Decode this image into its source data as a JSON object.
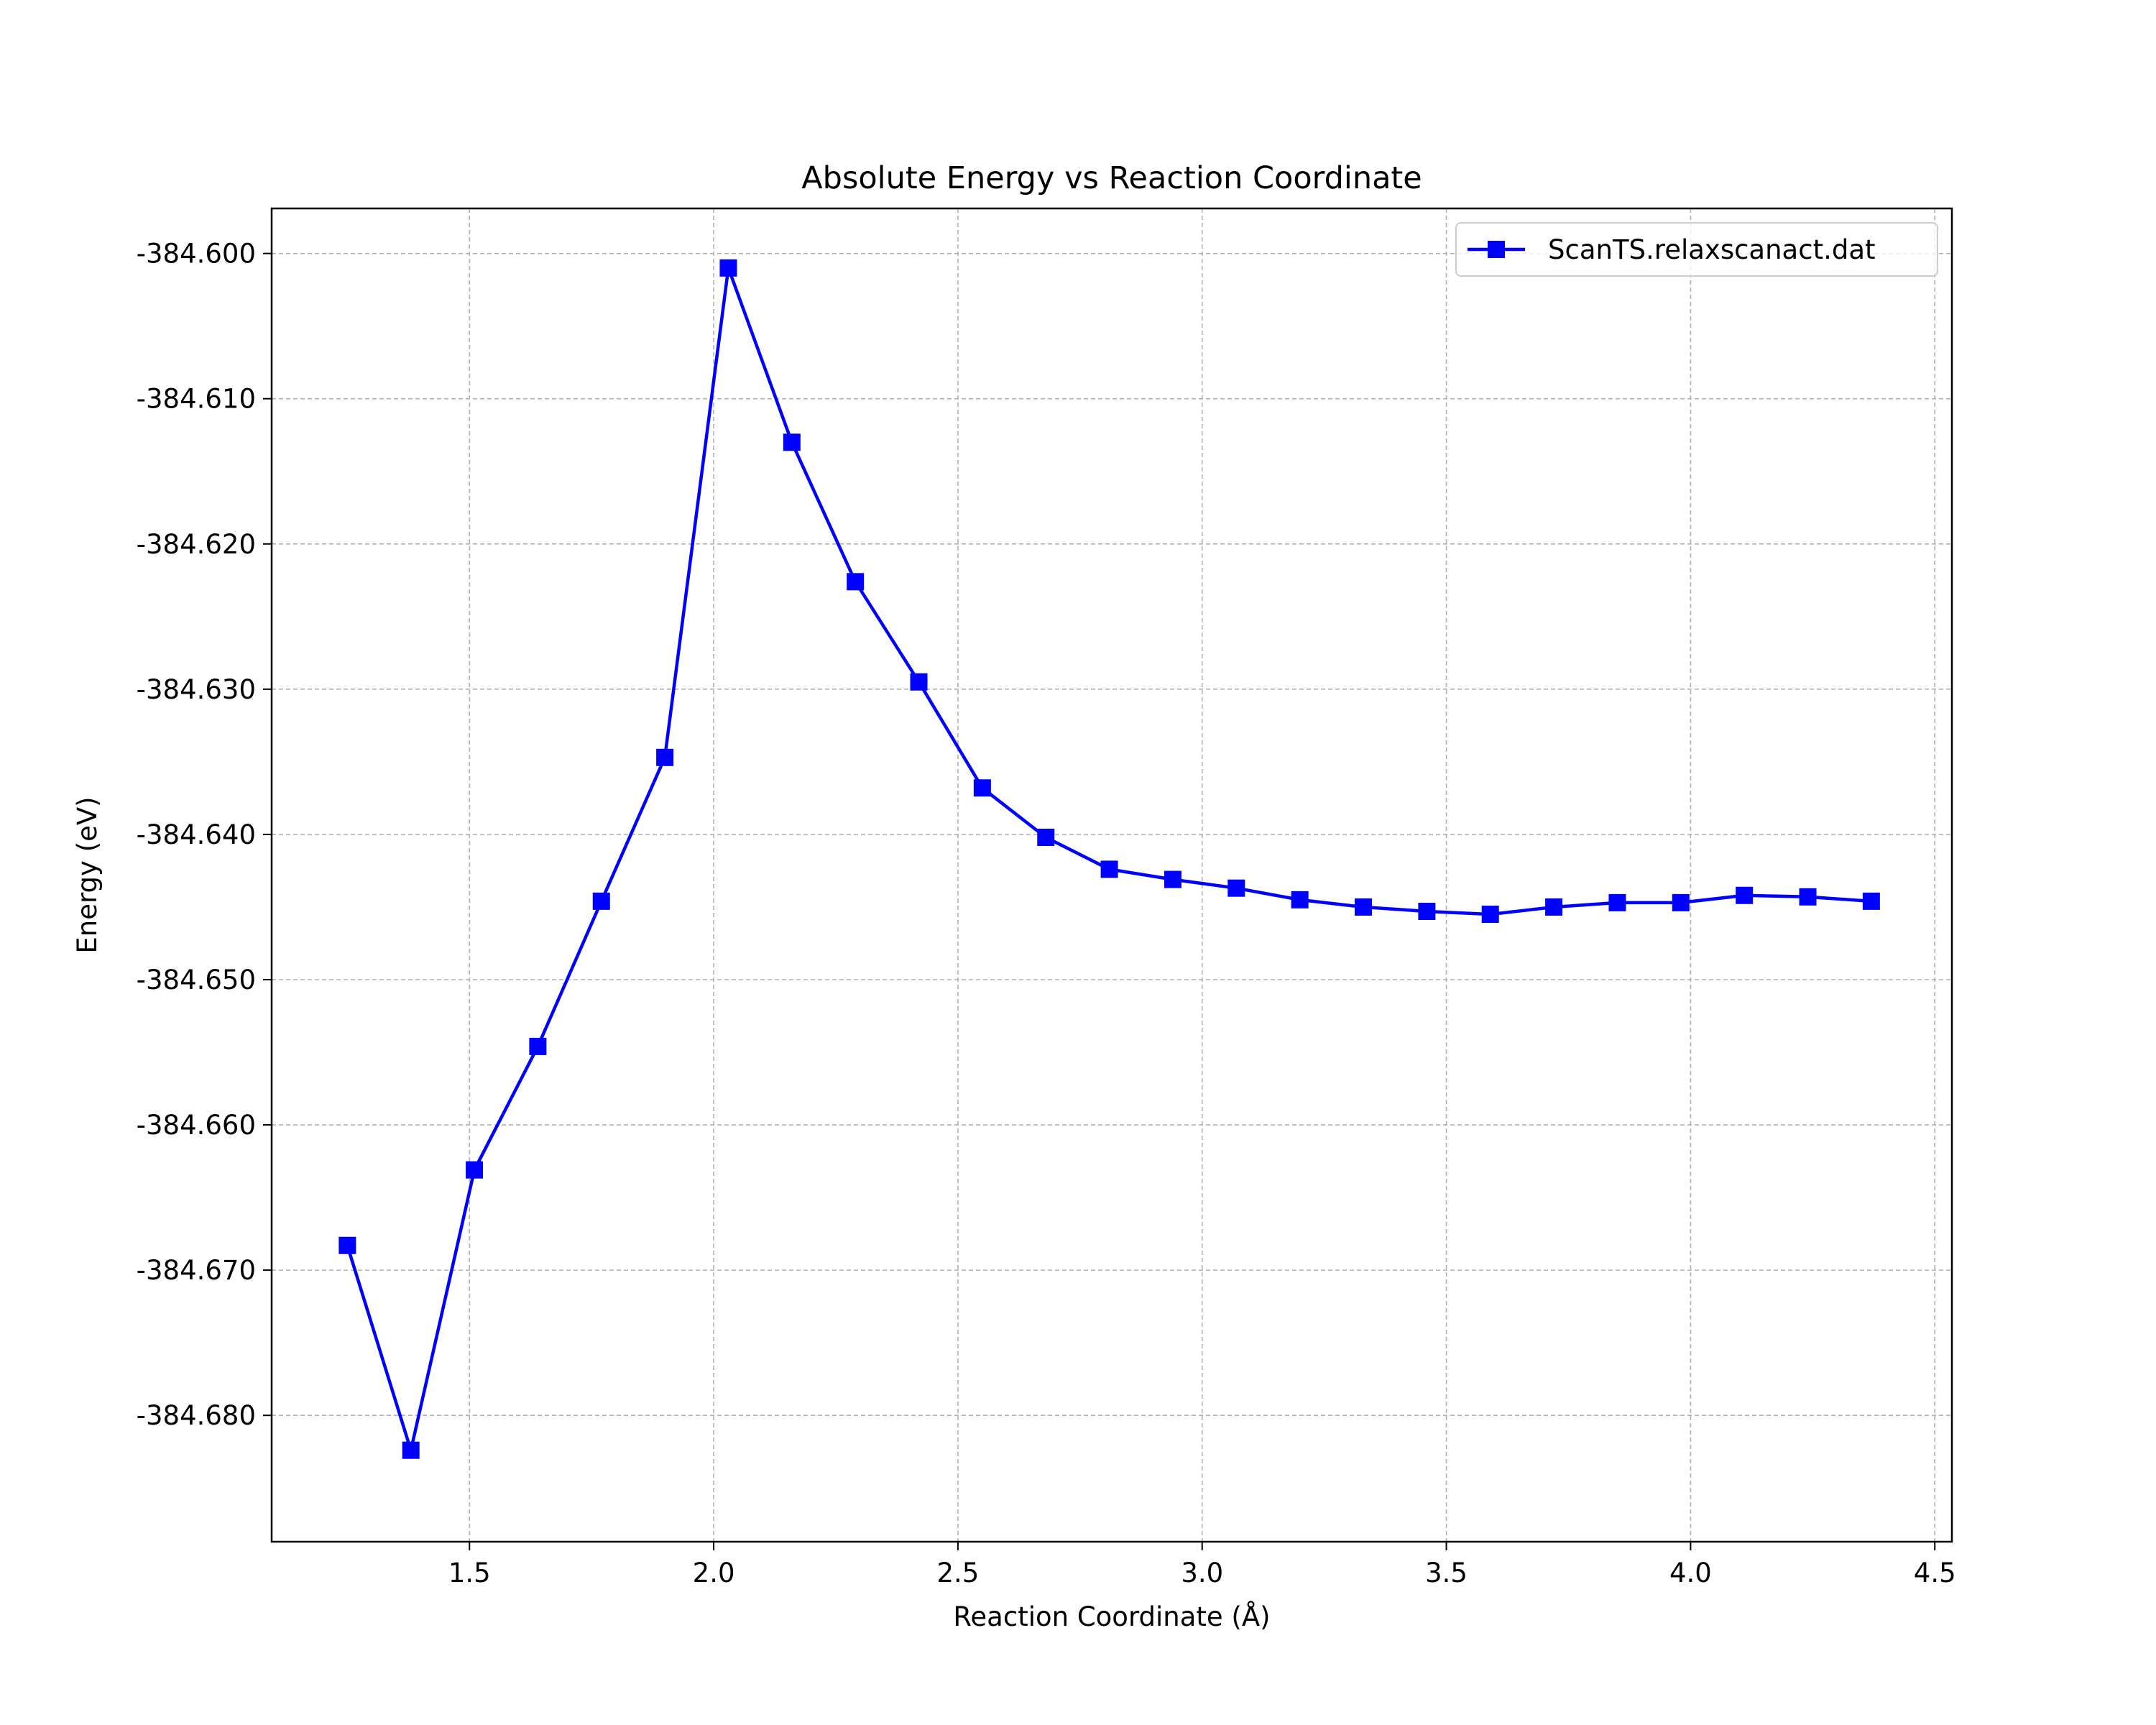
{
  "chart_data": {
    "type": "line",
    "title": "Absolute Energy vs Reaction Coordinate",
    "xlabel": "Reaction Coordinate (Å)",
    "ylabel": "Energy (eV)",
    "xlim": [
      1.095,
      4.535
    ],
    "ylim": [
      -384.6887,
      -384.5969
    ],
    "xticks": [
      1.5,
      2.0,
      2.5,
      3.0,
      3.5,
      4.0,
      4.5
    ],
    "xtick_labels": [
      "1.5",
      "2.0",
      "2.5",
      "3.0",
      "3.5",
      "4.0",
      "4.5"
    ],
    "yticks": [
      -384.6,
      -384.61,
      -384.62,
      -384.63,
      -384.64,
      -384.65,
      -384.66,
      -384.67,
      -384.68
    ],
    "ytick_labels": [
      "-384.600",
      "-384.610",
      "-384.620",
      "-384.630",
      "-384.640",
      "-384.650",
      "-384.660",
      "-384.670",
      "-384.680"
    ],
    "grid": true,
    "legend_position": "top-right",
    "series": [
      {
        "name": "ScanTS.relaxscanact.dat",
        "color": "#0000ff",
        "marker": "square",
        "x": [
          1.25,
          1.38,
          1.51,
          1.64,
          1.77,
          1.9,
          2.03,
          2.16,
          2.29,
          2.42,
          2.55,
          2.68,
          2.81,
          2.94,
          3.07,
          3.2,
          3.33,
          3.46,
          3.59,
          3.72,
          3.85,
          3.98,
          4.11,
          4.24,
          4.37
        ],
        "y": [
          -384.6683,
          -384.6824,
          -384.6631,
          -384.6546,
          -384.6446,
          -384.6347,
          -384.601,
          -384.613,
          -384.6226,
          -384.6295,
          -384.6368,
          -384.6402,
          -384.6424,
          -384.6431,
          -384.6437,
          -384.6445,
          -384.645,
          -384.6453,
          -384.6455,
          -384.645,
          -384.6447,
          -384.6447,
          -384.6442,
          -384.6443,
          -384.6446
        ]
      }
    ]
  }
}
